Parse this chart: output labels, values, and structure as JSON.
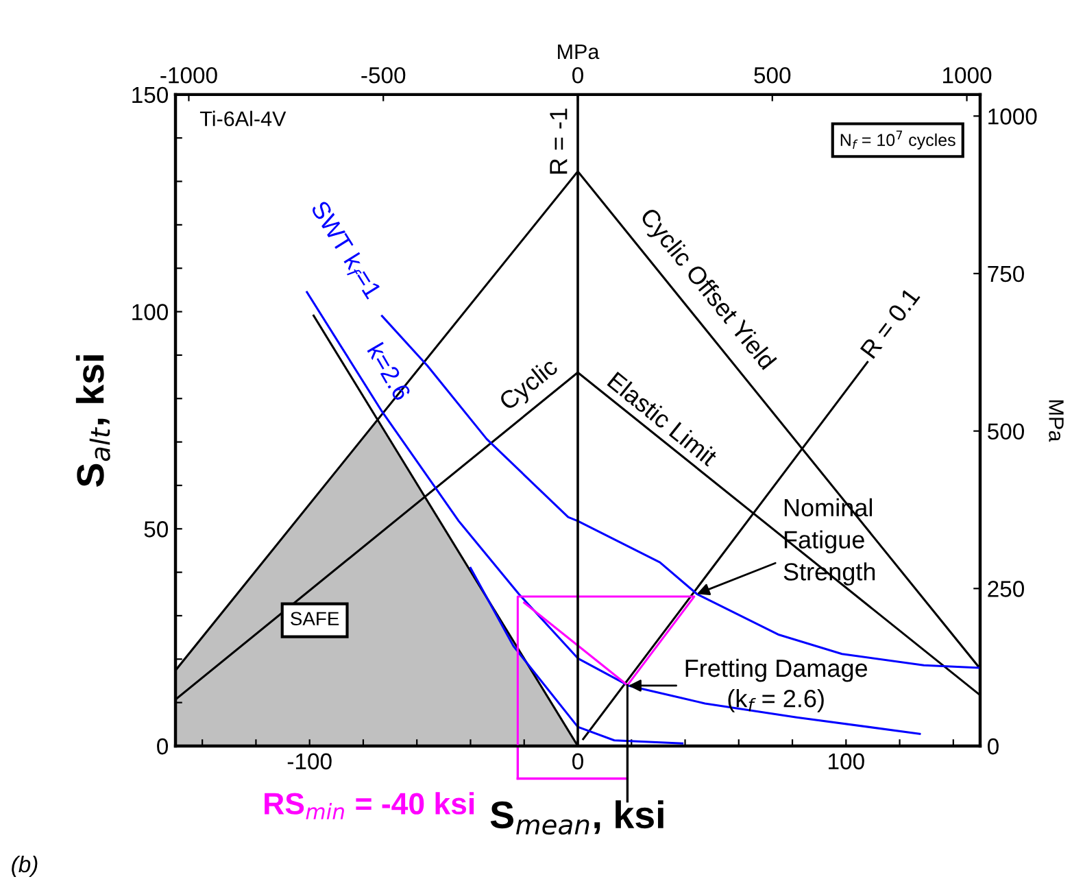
{
  "chart_data": {
    "type": "line",
    "xlabel": "S$_{mean}$, ksi",
    "ylabel": "S$_{alt}$, ksi",
    "x2label": "MPa",
    "y2label": "MPa",
    "xlim": [
      -150,
      150
    ],
    "ylim": [
      0,
      150
    ],
    "xticks": [
      {
        "value": -140,
        "label": null
      },
      {
        "value": -120,
        "label": null
      },
      {
        "value": -100,
        "label": "-100"
      },
      {
        "value": -80,
        "label": null
      },
      {
        "value": -60,
        "label": null
      },
      {
        "value": -40,
        "label": null
      },
      {
        "value": -20,
        "label": null
      },
      0,
      {
        "value": 20,
        "label": null
      },
      {
        "value": 40,
        "label": null
      },
      {
        "value": 60,
        "label": null
      },
      {
        "value": 80,
        "label": null
      },
      100,
      {
        "value": 120,
        "label": null
      },
      {
        "value": 140,
        "label": null
      }
    ],
    "yticks": [
      0,
      {
        "value": 10,
        "label": null
      },
      {
        "value": 20,
        "label": null
      },
      {
        "value": 30,
        "label": null
      },
      {
        "value": 40,
        "label": null
      },
      50,
      {
        "value": 60,
        "label": null
      },
      {
        "value": 70,
        "label": null
      },
      {
        "value": 80,
        "label": null
      },
      {
        "value": 90,
        "label": null
      },
      100,
      {
        "value": 110,
        "label": null
      },
      {
        "value": 120,
        "label": null
      },
      {
        "value": 130,
        "label": null
      },
      {
        "value": 140,
        "label": null
      },
      150
    ],
    "x2lim": [
      -1034.2,
      1034.2
    ],
    "x2ticks": [
      -1000,
      -500,
      0,
      500,
      1000
    ],
    "y2lim": [
      0,
      1034.2
    ],
    "y2ticks": [
      0,
      250,
      500,
      750,
      1000
    ],
    "grid": false,
    "marker": "none",
    "line_style": "solid",
    "ref_lines": [
      {
        "axis": "x",
        "value": 0,
        "color": "#000000"
      }
    ],
    "series": [
      {
        "type": "area",
        "color": "#c0c0c0",
        "x": [
          -150,
          -75,
          0
        ],
        "values": [
          17.4,
          75,
          0
        ]
      },
      {
        "color": "#000000",
        "x": [
          -150,
          0,
          150
        ],
        "values": [
          17.4,
          132.3,
          17.8
        ]
      },
      {
        "color": "#000000",
        "x": [
          -150,
          0,
          150
        ],
        "values": [
          10.7,
          86,
          11.7
        ]
      },
      {
        "color": "#000000",
        "x": [
          2,
          108
        ],
        "values": [
          1.6,
          88.4
        ]
      },
      {
        "color": "#000000",
        "x": [
          -98.5,
          0
        ],
        "values": [
          99.1,
          0
        ]
      },
      {
        "color": "#0000ff",
        "x": [
          -73,
          -56,
          -34,
          -3.6,
          0,
          30.6,
          44.4,
          75,
          98.5,
          129,
          149.5
        ],
        "values": [
          99,
          87.5,
          70.7,
          52.7,
          51.8,
          42.3,
          35,
          25.6,
          21.2,
          18.6,
          18
        ]
      },
      {
        "color": "#0000ff",
        "x": [
          -101,
          -73,
          -44.4,
          -22,
          0,
          18.9,
          47.4,
          81.6,
          127.5
        ],
        "values": [
          104.5,
          77,
          51.8,
          35,
          20.2,
          13.9,
          9.8,
          6.6,
          2.8
        ]
      },
      {
        "color": "#0000ff",
        "x": [
          -40,
          -24,
          0,
          13.6,
          39
        ],
        "values": [
          41,
          23,
          4.4,
          1.3,
          0.6
        ]
      },
      {
        "color": "#ff00ff",
        "x": [
          -22.4,
          -22.4,
          43.4,
          18.5,
          -20
        ],
        "values": [
          0,
          34.4,
          34.4,
          14,
          33
        ]
      },
      {
        "color": "#000000",
        "x": [
          18.5,
          18.5
        ],
        "values": [
          14,
          0
        ]
      }
    ],
    "annotations": [
      "Ti-6Al-4V",
      "N$_{f}$ = 10$^{7}$ cycles",
      "SAFE",
      "Cyclic Offset Yield",
      "Cyclic",
      "Elastic Limit",
      "R = 0.1",
      "SWT k$_{f}$=1",
      "k=2.6",
      {
        "text": "Nominal\nFatigue\nStrength",
        "x": 44.4,
        "y": 35
      },
      {
        "text": "Fretting Damage\n(k$_{f}$ = 2.6)",
        "x": 18.9,
        "y": 13.9
      },
      "RS$_{min}$ = -40 ksi",
      "(b)",
      "R = -1"
    ]
  }
}
